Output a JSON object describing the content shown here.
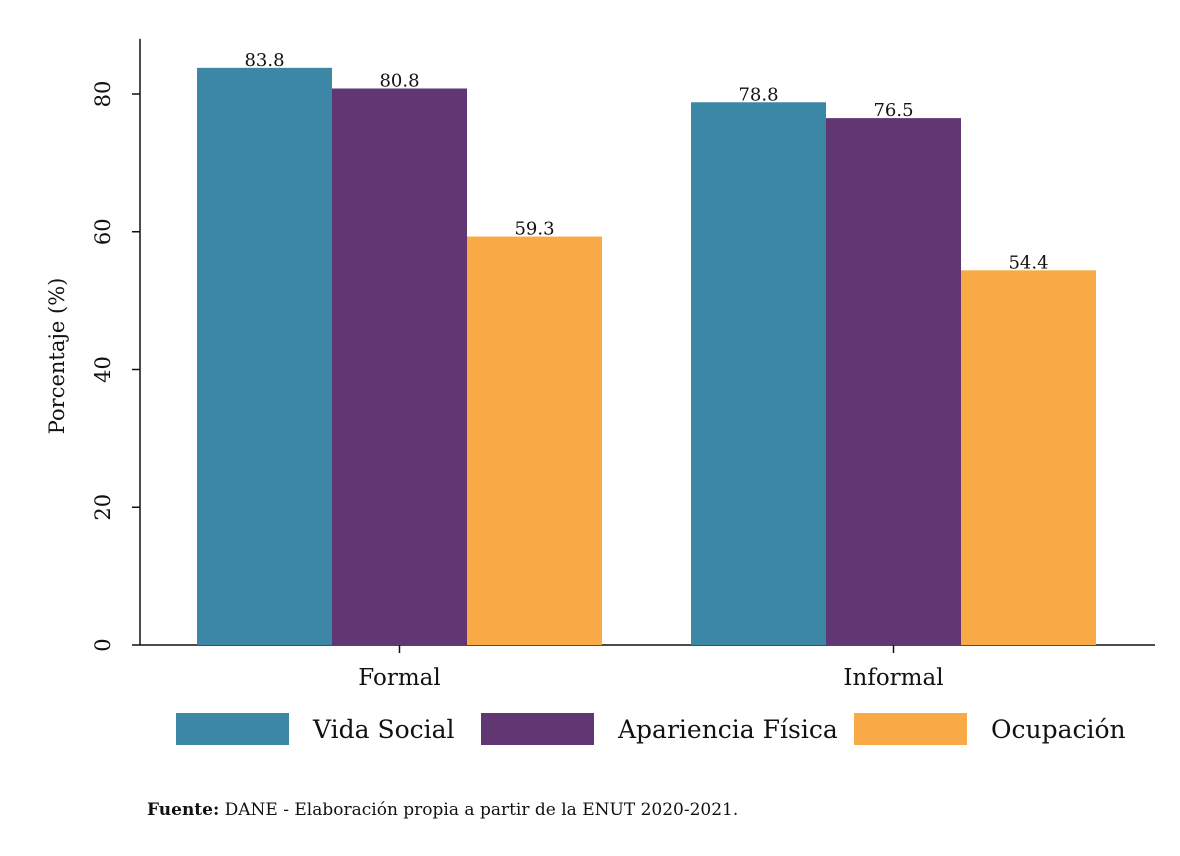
{
  "chart_data": {
    "type": "bar",
    "categories": [
      "Formal",
      "Informal"
    ],
    "series": [
      {
        "name": "Vida Social",
        "values": [
          83.8,
          78.8
        ],
        "color": "#3d87a6"
      },
      {
        "name": "Apariencia Física",
        "values": [
          80.8,
          76.5
        ],
        "color": "#613773"
      },
      {
        "name": "Ocupación",
        "values": [
          59.3,
          54.4
        ],
        "color": "#f9aa47"
      }
    ],
    "data_labels": [
      [
        "83.8",
        "78.8"
      ],
      [
        "80.8",
        "76.5"
      ],
      [
        "59.3",
        "54.4"
      ]
    ],
    "title": "",
    "xlabel": "",
    "ylabel": "Porcentaje (%)",
    "ylim": [
      0,
      88
    ],
    "yticks": [
      0,
      20,
      40,
      60,
      80
    ],
    "ytick_labels": [
      "0",
      "20",
      "40",
      "60",
      "80"
    ],
    "grid": false,
    "legend_position": "bottom"
  },
  "source": {
    "label": "Fuente:",
    "text": " DANE - Elaboración propia a partir de la ENUT 2020-2021."
  }
}
